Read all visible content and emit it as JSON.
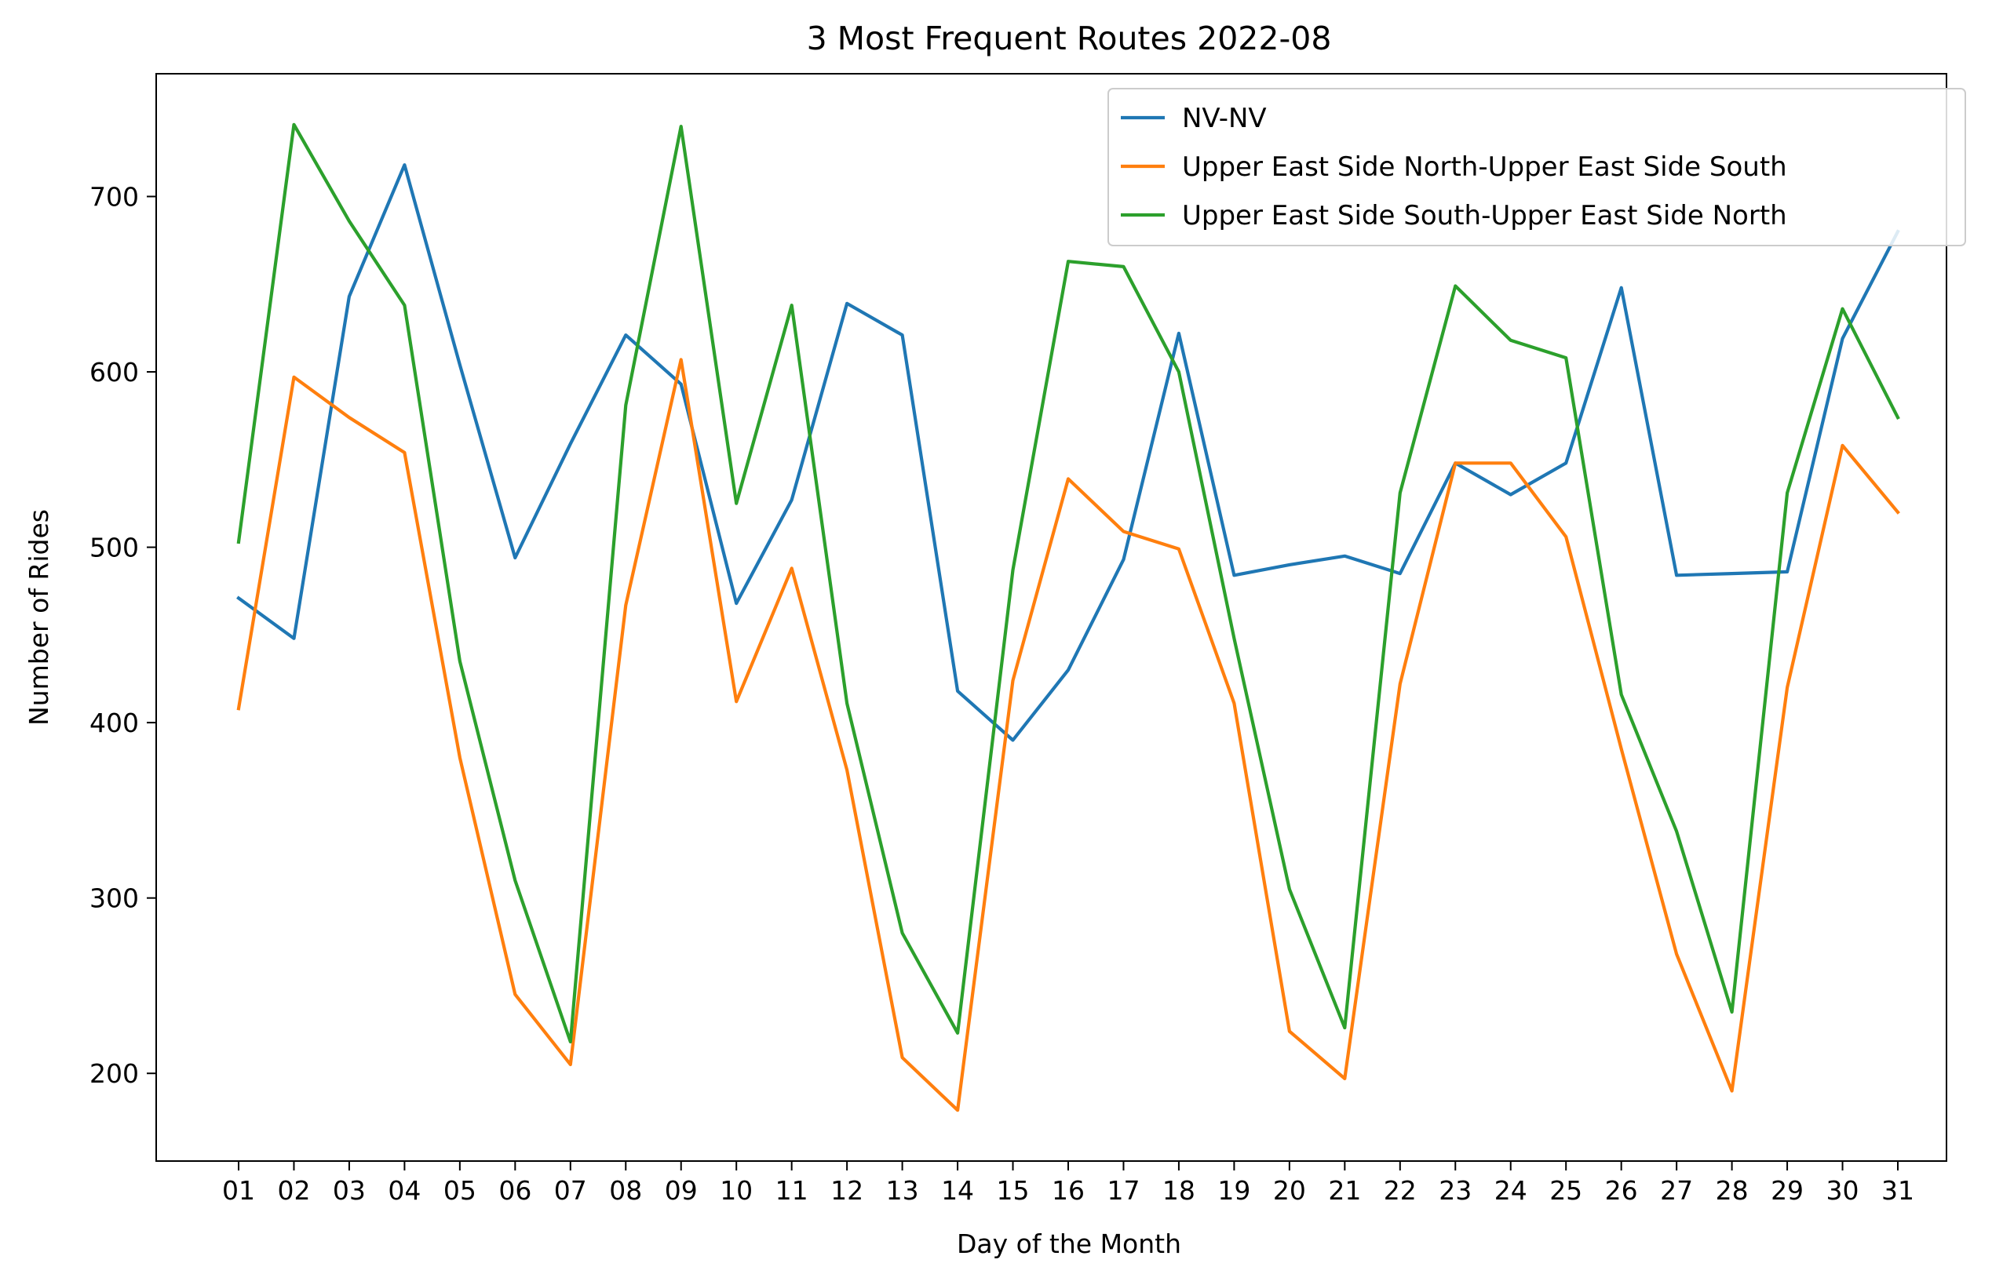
{
  "chart_data": {
    "type": "line",
    "title": "3 Most Frequent Routes 2022-08",
    "xlabel": "Day of the Month",
    "ylabel": "Number of Rides",
    "categories": [
      "01",
      "02",
      "03",
      "04",
      "05",
      "06",
      "07",
      "08",
      "09",
      "10",
      "11",
      "12",
      "13",
      "14",
      "15",
      "16",
      "17",
      "18",
      "19",
      "20",
      "21",
      "22",
      "23",
      "24",
      "25",
      "26",
      "27",
      "28",
      "29",
      "30",
      "31"
    ],
    "ylim": [
      150,
      770
    ],
    "yticks": [
      200,
      300,
      400,
      500,
      600,
      700
    ],
    "grid": false,
    "legend_position": "top-right",
    "series": [
      {
        "name": "NV-NV",
        "color": "#1f77b4",
        "values": [
          471,
          448,
          643,
          718,
          604,
          494,
          559,
          621,
          593,
          468,
          527,
          639,
          621,
          418,
          390,
          430,
          493,
          622,
          484,
          490,
          495,
          485,
          548,
          530,
          548,
          648,
          484,
          485,
          486,
          619,
          680
        ]
      },
      {
        "name": "Upper East Side North-Upper East Side South",
        "color": "#ff7f0e",
        "values": [
          408,
          597,
          574,
          554,
          380,
          245,
          205,
          467,
          607,
          412,
          488,
          373,
          209,
          179,
          424,
          539,
          509,
          499,
          411,
          224,
          197,
          422,
          548,
          548,
          506,
          385,
          268,
          190,
          420,
          558,
          520
        ]
      },
      {
        "name": "Upper East Side South-Upper East Side North",
        "color": "#2ca02c",
        "values": [
          503,
          741,
          686,
          638,
          435,
          310,
          218,
          581,
          740,
          525,
          638,
          411,
          280,
          223,
          487,
          663,
          660,
          600,
          448,
          305,
          226,
          531,
          649,
          618,
          608,
          416,
          338,
          235,
          531,
          636,
          574
        ]
      }
    ]
  }
}
